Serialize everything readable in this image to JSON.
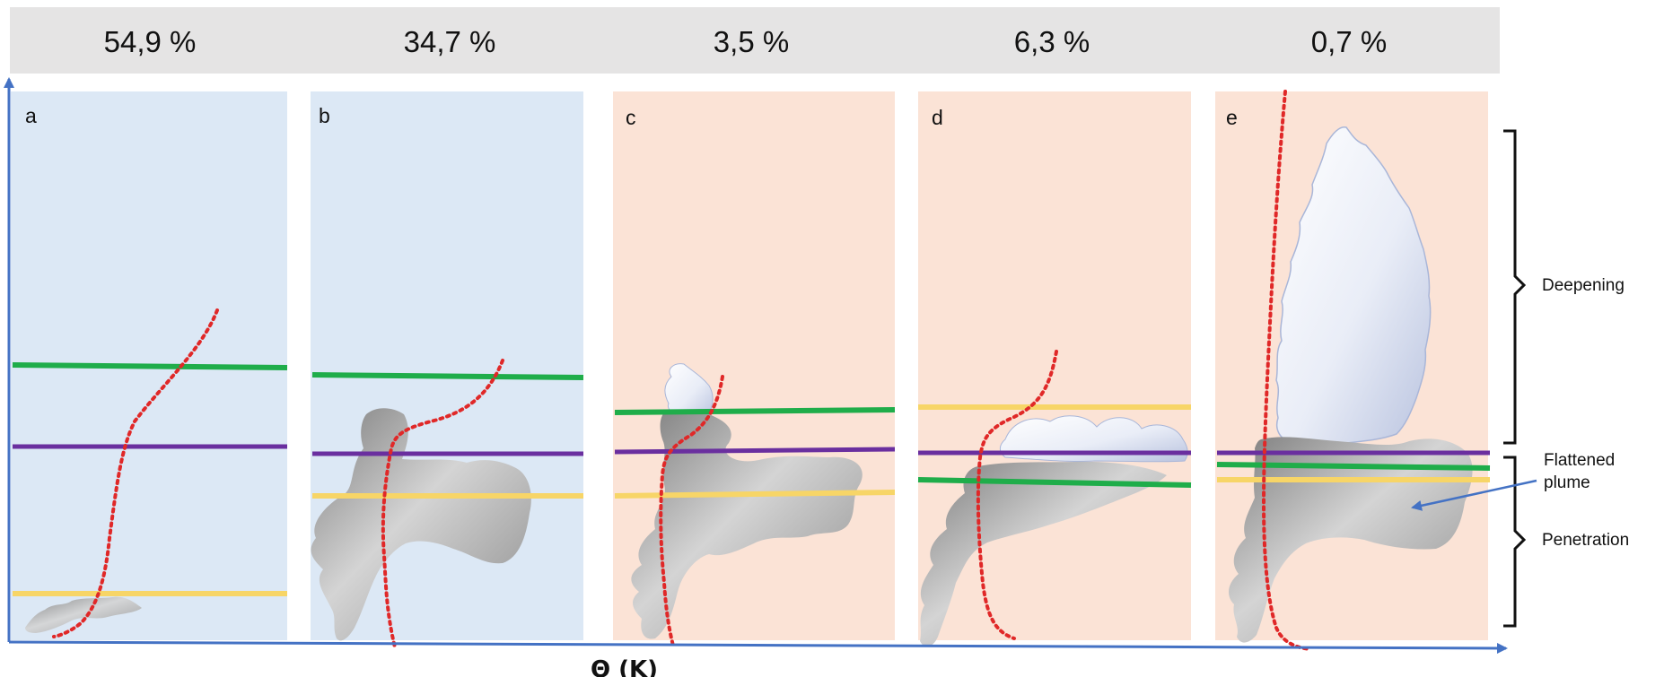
{
  "header": {
    "percentages": [
      "54,9 %",
      "34,7 %",
      "3,5 %",
      "6,3 %",
      "0,7 %"
    ]
  },
  "panels": [
    {
      "letter": "a",
      "regime": "blue"
    },
    {
      "letter": "b",
      "regime": "blue"
    },
    {
      "letter": "c",
      "regime": "peach"
    },
    {
      "letter": "d",
      "regime": "peach"
    },
    {
      "letter": "e",
      "regime": "peach"
    }
  ],
  "colors": {
    "blue_panel": "#dce8f5",
    "peach_panel": "#fbe3d6",
    "green_line": "#1fad4a",
    "purple_line": "#6a2f9f",
    "yellow_line": "#f7d567",
    "dotted_profile": "#e02828",
    "axis": "#4472c4",
    "header_bar": "#e5e4e4"
  },
  "axis": {
    "x_label": "Θ (K)"
  },
  "annotations": {
    "deepening": "Deepening",
    "flattened_plume_line1": "Flattened",
    "flattened_plume_line2": "plume",
    "penetration": "Penetration"
  }
}
